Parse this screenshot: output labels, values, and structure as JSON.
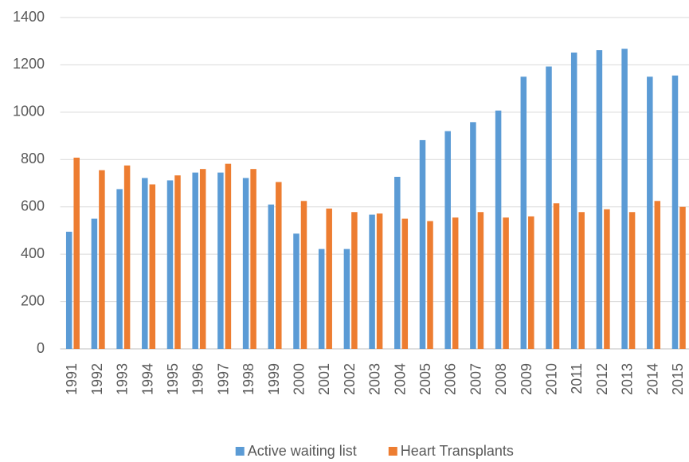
{
  "chart_data": {
    "type": "bar",
    "categories": [
      "1991",
      "1992",
      "1993",
      "1994",
      "1995",
      "1996",
      "1997",
      "1998",
      "1999",
      "2000",
      "2001",
      "2002",
      "2003",
      "2004",
      "2005",
      "2006",
      "2007",
      "2008",
      "2009",
      "2010",
      "2011",
      "2012",
      "2013",
      "2014",
      "2015"
    ],
    "series": [
      {
        "name": "Active waiting list",
        "color": "#5b9bd5",
        "values": [
          495,
          550,
          675,
          722,
          712,
          745,
          745,
          722,
          610,
          487,
          422,
          422,
          567,
          727,
          882,
          920,
          958,
          1007,
          1150,
          1193,
          1252,
          1262,
          1268,
          1150,
          1155
        ]
      },
      {
        "name": "Heart Transplants",
        "color": "#ed7d31",
        "values": [
          808,
          755,
          775,
          695,
          733,
          760,
          782,
          760,
          705,
          625,
          593,
          578,
          572,
          550,
          540,
          555,
          578,
          555,
          560,
          615,
          578,
          590,
          578,
          625,
          600
        ]
      }
    ],
    "ylim": [
      0,
      1400
    ],
    "yticks": [
      0,
      200,
      400,
      600,
      800,
      1000,
      1200,
      1400
    ],
    "grid": true,
    "legend": "bottom"
  }
}
